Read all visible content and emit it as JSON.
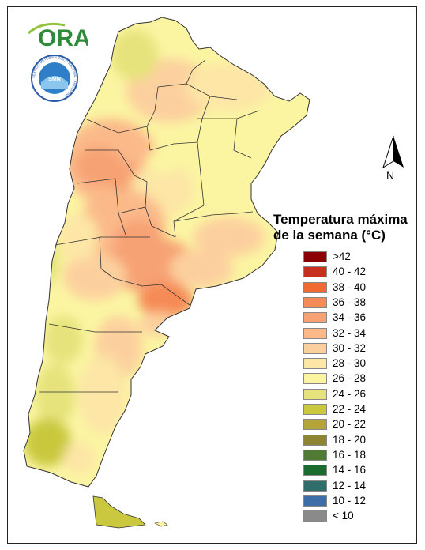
{
  "logos": {
    "ora_text": "ORA",
    "smn_ring_text": "SERVICIO METEOROLÓGICO NACIONAL · ARGENTINA",
    "smn_center_text": "SMN"
  },
  "north": {
    "label": "N",
    "icon": "north-arrow-icon"
  },
  "legend": {
    "title_line1": "Temperatura máxima",
    "title_line2": "de la semana (°C)",
    "items": [
      {
        "label": ">42",
        "color": "#8b0000"
      },
      {
        "label": "40 - 42",
        "color": "#c8301e"
      },
      {
        "label": "38 - 40",
        "color": "#f06a32"
      },
      {
        "label": "36 - 38",
        "color": "#f58b56"
      },
      {
        "label": "34 - 36",
        "color": "#f7a274"
      },
      {
        "label": "32 - 34",
        "color": "#fbb98a"
      },
      {
        "label": "30 - 32",
        "color": "#fcd09e"
      },
      {
        "label": "28 - 30",
        "color": "#fde6a6"
      },
      {
        "label": "26 - 28",
        "color": "#fbf5a2"
      },
      {
        "label": "24 - 26",
        "color": "#e6e37c"
      },
      {
        "label": "22 - 24",
        "color": "#c9c83e"
      },
      {
        "label": "20 - 22",
        "color": "#b4a43a"
      },
      {
        "label": "18 - 20",
        "color": "#8e8432"
      },
      {
        "label": "16 - 18",
        "color": "#4f7b34"
      },
      {
        "label": "14 - 16",
        "color": "#1a6b2f"
      },
      {
        "label": "12 - 14",
        "color": "#2f6e6a"
      },
      {
        "label": "10 - 12",
        "color": "#3d6ea8"
      },
      {
        "label": "< 10",
        "color": "#8a8a8a"
      }
    ]
  }
}
